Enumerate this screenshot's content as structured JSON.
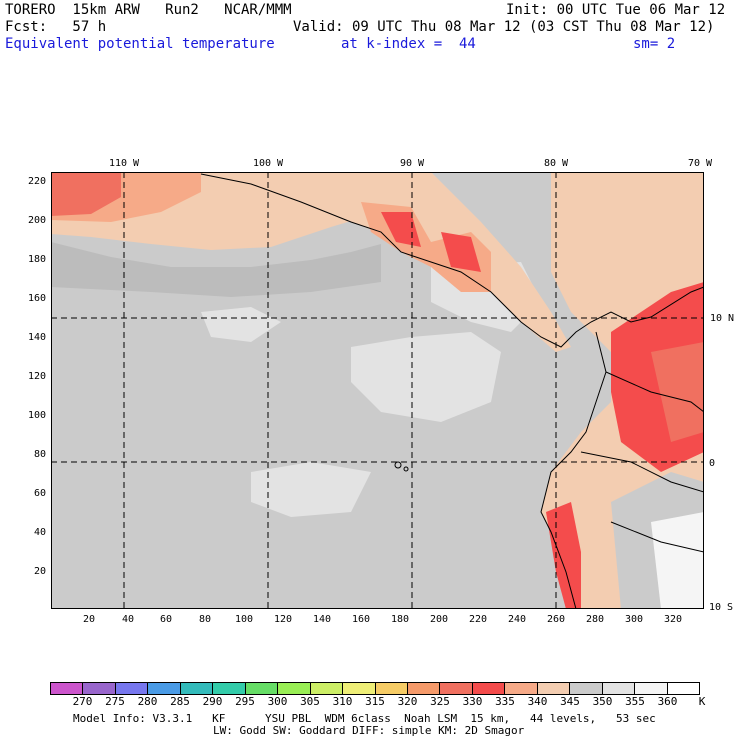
{
  "header": {
    "model": "TORERO  15km ARW   Run2   NCAR/MMM",
    "init": "Init: 00 UTC Tue 06 Mar 12",
    "fcst": "Fcst:   57 h",
    "valid": "Valid: 09 UTC Thu 08 Mar 12 (03 CST Thu 08 Mar 12)",
    "field": "Equivalent potential temperature",
    "level": "at k-index =  44",
    "smooth": "sm= 2"
  },
  "map": {
    "lon_labels": [
      "110 W",
      "100 W",
      "90 W",
      "80 W",
      "70 W"
    ],
    "lat_labels": [
      "10 N",
      "0",
      "10 S"
    ],
    "grid_x_ticks": [
      "20",
      "40",
      "60",
      "80",
      "100",
      "120",
      "140",
      "160",
      "180",
      "200",
      "220",
      "240",
      "260",
      "280",
      "300",
      "320"
    ],
    "grid_y_ticks": [
      "220",
      "200",
      "180",
      "160",
      "140",
      "120",
      "100",
      "80",
      "60",
      "40",
      "20"
    ]
  },
  "colorbar": {
    "labels": [
      "270",
      "275",
      "280",
      "285",
      "290",
      "295",
      "300",
      "305",
      "310",
      "315",
      "320",
      "325",
      "330",
      "335",
      "340",
      "345",
      "350",
      "355",
      "360"
    ],
    "unit": "K",
    "colors": [
      "#cc55cc",
      "#9966cc",
      "#7777ee",
      "#4a9be6",
      "#33bbbb",
      "#33ccaa",
      "#66dd66",
      "#99ee55",
      "#ccee66",
      "#eeee77",
      "#f6cc66",
      "#f59a6a",
      "#f07060",
      "#f44c4c",
      "#f6aa88",
      "#f3cdb1",
      "#cbcbcb",
      "#e3e3e3",
      "#f5f5f5",
      "#ffffff"
    ]
  },
  "footer": {
    "line1": "Model Info: V3.3.1   KF      YSU PBL  WDM 6class  Noah LSM  15 km,   44 levels,   53 sec",
    "line2": "LW: Godd SW: Goddard DIFF: simple KM: 2D Smagor"
  }
}
